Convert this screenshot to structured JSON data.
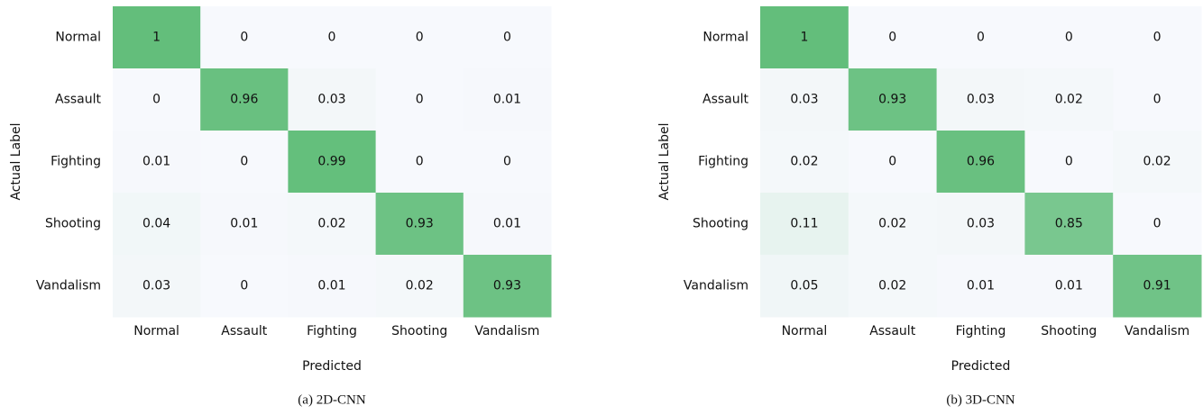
{
  "chart_data": [
    {
      "type": "heatmap",
      "caption": "(a) 2D-CNN",
      "xlabel": "Predicted",
      "ylabel": "Actual Label",
      "rows": [
        "Normal",
        "Assault",
        "Fighting",
        "Shooting",
        "Vandalism"
      ],
      "columns": [
        "Normal",
        "Assault",
        "Fighting",
        "Shooting",
        "Vandalism"
      ],
      "values": [
        [
          1,
          0,
          0,
          0,
          0
        ],
        [
          0,
          0.96,
          0.03,
          0,
          0.01
        ],
        [
          0.01,
          0,
          0.99,
          0,
          0
        ],
        [
          0.04,
          0.01,
          0.02,
          0.93,
          0.01
        ],
        [
          0.03,
          0,
          0.01,
          0.02,
          0.93
        ]
      ],
      "vlim": [
        0,
        1
      ],
      "colors": [
        "#f7f9fd",
        "#63be7b"
      ]
    },
    {
      "type": "heatmap",
      "caption": "(b) 3D-CNN",
      "xlabel": "Predicted",
      "ylabel": "Actual Label",
      "rows": [
        "Normal",
        "Assault",
        "Fighting",
        "Shooting",
        "Vandalism"
      ],
      "columns": [
        "Normal",
        "Assault",
        "Fighting",
        "Shooting",
        "Vandalism"
      ],
      "values": [
        [
          1,
          0,
          0,
          0,
          0
        ],
        [
          0.03,
          0.93,
          0.03,
          0.02,
          0
        ],
        [
          0.02,
          0,
          0.96,
          0,
          0.02
        ],
        [
          0.11,
          0.02,
          0.03,
          0.85,
          0
        ],
        [
          0.05,
          0.02,
          0.01,
          0.01,
          0.91
        ]
      ],
      "vlim": [
        0,
        1
      ],
      "colors": [
        "#f7f9fd",
        "#63be7b"
      ]
    }
  ]
}
